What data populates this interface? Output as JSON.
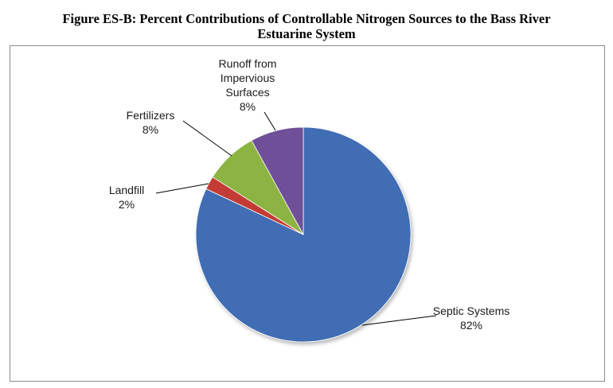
{
  "chart_data": {
    "type": "pie",
    "title_lines": [
      "Figure ES-B: Percent Contributions of Controllable Nitrogen Sources to the Bass River",
      "Estuarine System"
    ],
    "start_angle_deg": 0,
    "direction": "clockwise",
    "slices": [
      {
        "name": "Septic Systems",
        "value": 82,
        "label_lines": [
          "Septic Systems"
        ],
        "pct_label": "82%",
        "color": "#3f6db3"
      },
      {
        "name": "Landfill",
        "value": 2,
        "label_lines": [
          "Landfill"
        ],
        "pct_label": "2%",
        "color": "#c43a36"
      },
      {
        "name": "Fertilizers",
        "value": 8,
        "label_lines": [
          "Fertilizers"
        ],
        "pct_label": "8%",
        "color": "#8db443"
      },
      {
        "name": "Runoff from Impervious Surfaces",
        "value": 8,
        "label_lines": [
          "Runoff from",
          "Impervious",
          "Surfaces"
        ],
        "pct_label": "8%",
        "color": "#6e4f98"
      }
    ]
  }
}
